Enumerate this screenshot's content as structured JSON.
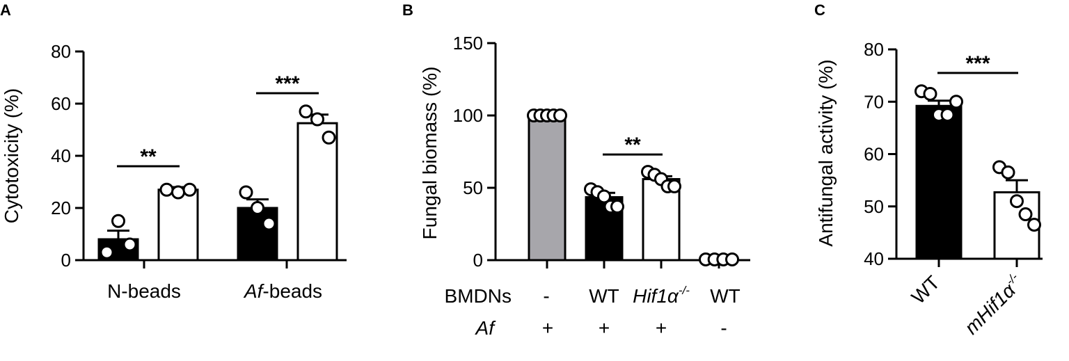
{
  "colors": {
    "black": "#000000",
    "white": "#ffffff",
    "grey": "#a7a6ab"
  },
  "chart_data": [
    {
      "panel": "A",
      "type": "bar",
      "ylabel": "Cytotoxicity (%)",
      "ylim": [
        0,
        80
      ],
      "yticks": [
        "0",
        "20",
        "40",
        "60",
        "80"
      ],
      "groups": [
        {
          "label": "N-beads",
          "label_italic": "",
          "label_rest": "N-beads"
        },
        {
          "label": "Af-beads",
          "label_italic": "Af",
          "label_rest": "-beads"
        }
      ],
      "bars": [
        {
          "group": 0,
          "fill": "black",
          "mean": 8,
          "sem": 3.3,
          "points": [
            3,
            15,
            6
          ]
        },
        {
          "group": 0,
          "fill": "white",
          "mean": 27,
          "sem": 1,
          "points": [
            27,
            26,
            27
          ]
        },
        {
          "group": 1,
          "fill": "black",
          "mean": 20,
          "sem": 3.3,
          "points": [
            26,
            20,
            14
          ]
        },
        {
          "group": 1,
          "fill": "white",
          "mean": 52.5,
          "sem": 3.3,
          "points": [
            57,
            54,
            47
          ]
        }
      ],
      "significance": [
        {
          "from": 0,
          "to": 1,
          "label": "**",
          "y": 36
        },
        {
          "from": 2,
          "to": 3,
          "label": "***",
          "y": 64
        }
      ]
    },
    {
      "panel": "B",
      "type": "bar",
      "ylabel": "Fungal biomass (%)",
      "ylim": [
        0,
        150
      ],
      "yticks": [
        "0",
        "50",
        "100",
        "150"
      ],
      "row_labels": [
        "BMDNs",
        "Af"
      ],
      "bars": [
        {
          "fill": "grey",
          "mean": 100,
          "sem": 0,
          "points": [
            100,
            100,
            100,
            100,
            100
          ],
          "bmdns": "-",
          "af": "+"
        },
        {
          "fill": "black",
          "mean": 43.5,
          "sem": 3,
          "points": [
            49,
            47,
            44,
            37,
            37
          ],
          "bmdns": "WT",
          "af": "+"
        },
        {
          "fill": "white",
          "mean": 56,
          "sem": 2,
          "points": [
            61,
            59,
            56,
            51,
            51
          ],
          "bmdns": "Hif1α-/-",
          "bmdns_italic": "Hif1α",
          "bmdns_sup": "-/-",
          "af": "+"
        },
        {
          "fill": "white",
          "mean": 0.5,
          "sem": 0,
          "points": [
            0.5,
            0.5,
            0.5,
            0.5
          ],
          "bmdns": "WT",
          "af": "-"
        }
      ],
      "significance": [
        {
          "from": 1,
          "to": 2,
          "label": "**",
          "y": 73
        }
      ]
    },
    {
      "panel": "C",
      "type": "bar",
      "ylabel": "Antifungal activity (%)",
      "ylim": [
        40,
        80
      ],
      "yticks": [
        "40",
        "50",
        "60",
        "70",
        "80"
      ],
      "bars": [
        {
          "label": "WT",
          "fill": "black",
          "mean": 69.2,
          "sem": 1,
          "points": [
            72,
            71.5,
            67.5,
            67.5,
            70
          ]
        },
        {
          "label": "mHif1α-/-",
          "label_italic": "mHif1α",
          "label_sup": "-/-",
          "fill": "white",
          "mean": 52.7,
          "sem": 2.3,
          "points": [
            57.5,
            56.5,
            51,
            48.5,
            46.5
          ]
        }
      ],
      "significance": [
        {
          "from": 0,
          "to": 1,
          "label": "***",
          "y": 75.5
        }
      ]
    }
  ]
}
